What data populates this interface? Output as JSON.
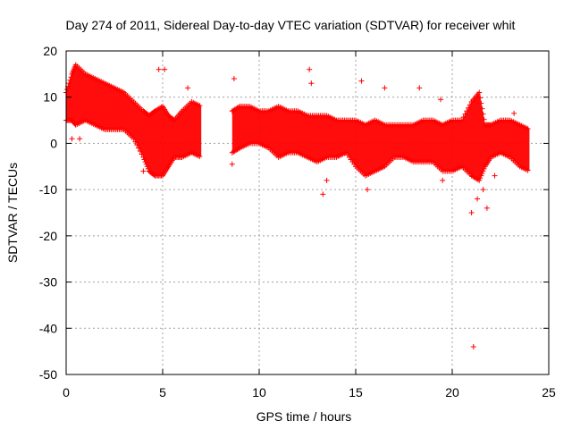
{
  "chart_data": {
    "type": "scatter",
    "title": "Day 274 of 2011, Sidereal Day-to-day VTEC variation (SDTVAR) for receiver whit",
    "xlabel": "GPS time / hours",
    "ylabel": "SDTVAR / TECUs",
    "xlim": [
      0,
      25
    ],
    "ylim": [
      -50,
      20
    ],
    "xticks": [
      0,
      5,
      10,
      15,
      20,
      25
    ],
    "yticks": [
      -50,
      -40,
      -30,
      -20,
      -10,
      0,
      10,
      20
    ],
    "xtick_labels": [
      "0",
      "5",
      "10",
      "15",
      "20",
      "25"
    ],
    "ytick_labels": [
      "-50",
      "-40",
      "-30",
      "-20",
      "-10",
      "0",
      "10",
      "20"
    ],
    "grid": true,
    "series_color": "#ff0000",
    "marker": "plus",
    "series": [
      {
        "name": "SDTVAR",
        "envelope": [
          {
            "x": 0.0,
            "low": 5,
            "high": 11
          },
          {
            "x": 0.3,
            "low": 5,
            "high": 15
          },
          {
            "x": 0.5,
            "low": 4,
            "high": 17
          },
          {
            "x": 1.0,
            "low": 5,
            "high": 15
          },
          {
            "x": 1.5,
            "low": 4,
            "high": 14
          },
          {
            "x": 2.0,
            "low": 3,
            "high": 13
          },
          {
            "x": 2.5,
            "low": 3,
            "high": 12
          },
          {
            "x": 3.0,
            "low": 3,
            "high": 11
          },
          {
            "x": 3.5,
            "low": 1,
            "high": 9
          },
          {
            "x": 4.0,
            "low": -3,
            "high": 7
          },
          {
            "x": 4.3,
            "low": -6,
            "high": 6
          },
          {
            "x": 4.6,
            "low": -7,
            "high": 7
          },
          {
            "x": 5.0,
            "low": -7,
            "high": 8
          },
          {
            "x": 5.3,
            "low": -5,
            "high": 6
          },
          {
            "x": 5.6,
            "low": -3,
            "high": 5
          },
          {
            "x": 6.0,
            "low": -3,
            "high": 7
          },
          {
            "x": 6.5,
            "low": -2,
            "high": 9
          },
          {
            "x": 7.0,
            "low": -3,
            "high": 8
          },
          {
            "x": 8.6,
            "low": -2,
            "high": 7
          },
          {
            "x": 9.0,
            "low": -1,
            "high": 8
          },
          {
            "x": 9.5,
            "low": 0,
            "high": 8
          },
          {
            "x": 10.0,
            "low": 0,
            "high": 7
          },
          {
            "x": 10.5,
            "low": -1,
            "high": 7
          },
          {
            "x": 11.0,
            "low": -3,
            "high": 8
          },
          {
            "x": 11.5,
            "low": -2,
            "high": 7
          },
          {
            "x": 12.0,
            "low": -2,
            "high": 7
          },
          {
            "x": 12.5,
            "low": -3,
            "high": 6
          },
          {
            "x": 13.0,
            "low": -4,
            "high": 6
          },
          {
            "x": 13.5,
            "low": -3,
            "high": 6
          },
          {
            "x": 14.0,
            "low": -3,
            "high": 5
          },
          {
            "x": 14.5,
            "low": -2,
            "high": 5
          },
          {
            "x": 15.0,
            "low": -5,
            "high": 5
          },
          {
            "x": 15.5,
            "low": -7,
            "high": 4
          },
          {
            "x": 16.0,
            "low": -6,
            "high": 5
          },
          {
            "x": 16.5,
            "low": -5,
            "high": 4
          },
          {
            "x": 17.0,
            "low": -3,
            "high": 4
          },
          {
            "x": 17.5,
            "low": -3,
            "high": 4
          },
          {
            "x": 18.0,
            "low": -4,
            "high": 4
          },
          {
            "x": 18.5,
            "low": -4,
            "high": 5
          },
          {
            "x": 19.0,
            "low": -4,
            "high": 5
          },
          {
            "x": 19.5,
            "low": -6,
            "high": 4
          },
          {
            "x": 20.0,
            "low": -6,
            "high": 5
          },
          {
            "x": 20.5,
            "low": -5,
            "high": 5
          },
          {
            "x": 21.0,
            "low": -7,
            "high": 9
          },
          {
            "x": 21.4,
            "low": -8,
            "high": 11
          },
          {
            "x": 21.7,
            "low": -5,
            "high": 4
          },
          {
            "x": 22.0,
            "low": -3,
            "high": 4
          },
          {
            "x": 22.5,
            "low": -2,
            "high": 5
          },
          {
            "x": 23.0,
            "low": -3,
            "high": 5
          },
          {
            "x": 23.5,
            "low": -5,
            "high": 4
          },
          {
            "x": 24.0,
            "low": -6,
            "high": 3
          }
        ],
        "outliers": [
          {
            "x": 0.3,
            "y": 1
          },
          {
            "x": 0.7,
            "y": 1
          },
          {
            "x": 4.0,
            "y": -6
          },
          {
            "x": 4.8,
            "y": 16
          },
          {
            "x": 5.1,
            "y": 16
          },
          {
            "x": 6.3,
            "y": 12
          },
          {
            "x": 8.6,
            "y": -4.5
          },
          {
            "x": 8.7,
            "y": 14
          },
          {
            "x": 12.6,
            "y": 16
          },
          {
            "x": 12.7,
            "y": 13
          },
          {
            "x": 13.3,
            "y": -11
          },
          {
            "x": 13.5,
            "y": -8
          },
          {
            "x": 15.3,
            "y": 13.5
          },
          {
            "x": 15.6,
            "y": -10
          },
          {
            "x": 16.5,
            "y": 12
          },
          {
            "x": 18.3,
            "y": 12
          },
          {
            "x": 19.4,
            "y": 9.5
          },
          {
            "x": 19.5,
            "y": -8
          },
          {
            "x": 21.0,
            "y": -15
          },
          {
            "x": 21.1,
            "y": -44
          },
          {
            "x": 21.3,
            "y": -12
          },
          {
            "x": 21.6,
            "y": -10
          },
          {
            "x": 21.8,
            "y": -14
          },
          {
            "x": 22.2,
            "y": -7
          },
          {
            "x": 23.2,
            "y": 6.5
          }
        ]
      }
    ]
  }
}
